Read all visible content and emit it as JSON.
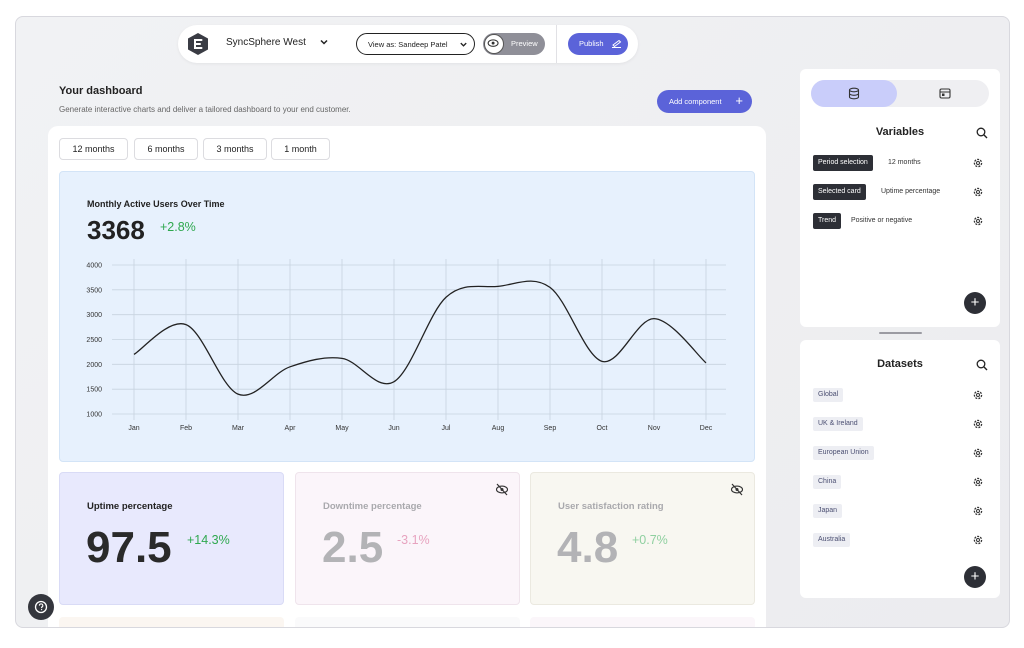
{
  "topbar": {
    "app_name": "SyncSphere West",
    "view_as": "View as: Sandeep Patel",
    "preview_label": "Preview",
    "publish_label": "Publish"
  },
  "header": {
    "title": "Your dashboard",
    "subtitle": "Generate interactive charts and deliver a tailored dashboard to your end customer.",
    "add_component_label": "Add component"
  },
  "periods": [
    "12 months",
    "6 months",
    "3 months",
    "1 month"
  ],
  "chart": {
    "title": "Monthly Active Users Over Time",
    "value": "3368",
    "delta": "+2.8%"
  },
  "chart_data": {
    "type": "line",
    "title": "Monthly Active Users Over Time",
    "x": [
      "Jan",
      "Feb",
      "Mar",
      "Apr",
      "May",
      "Jun",
      "Jul",
      "Aug",
      "Sep",
      "Oct",
      "Nov",
      "Dec"
    ],
    "series": [
      {
        "values": [
          2200,
          2800,
          1400,
          1950,
          2120,
          1650,
          3350,
          3570,
          3550,
          2060,
          2920,
          2030
        ]
      }
    ],
    "yticks": [
      1000,
      1500,
      2000,
      2500,
      3000,
      3500,
      4000
    ],
    "ylim": [
      1000,
      4000
    ],
    "grid": true,
    "line_color": "#222222"
  },
  "metrics": [
    {
      "title": "Uptime percentage",
      "value": "97.5",
      "delta": "+14.3%",
      "hidden": false
    },
    {
      "title": "Downtime percentage",
      "value": "2.5",
      "delta": "-3.1%",
      "hidden": true
    },
    {
      "title": "User satisfaction rating",
      "value": "4.8",
      "delta": "+0.7%",
      "hidden": true
    }
  ],
  "variables": {
    "title": "Variables",
    "items": [
      {
        "name": "Period selection",
        "value": "12 months"
      },
      {
        "name": "Selected card",
        "value": "Uptime percentage"
      },
      {
        "name": "Trend",
        "value": "Positive or negative"
      }
    ]
  },
  "datasets": {
    "title": "Datasets",
    "items": [
      "Global",
      "UK & Ireland",
      "European Union",
      "China",
      "Japan",
      "Australia"
    ]
  },
  "colors": {
    "accent": "#5b63d9",
    "positive": "#2fa84f",
    "negative": "#e25b8f",
    "chart_bg": "#e7f1fd"
  }
}
